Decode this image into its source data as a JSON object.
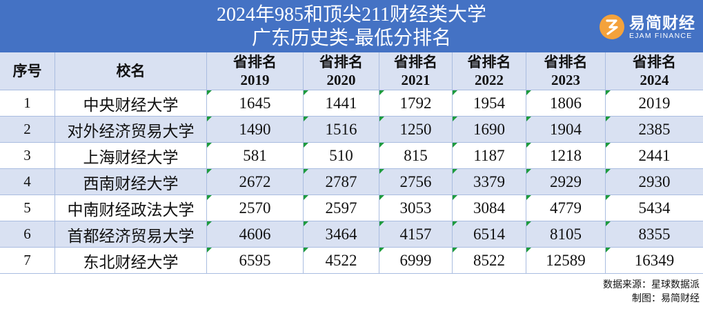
{
  "colors": {
    "title_band": "#4472C4",
    "title_text": "#FFFFFF",
    "header_row": "#D9E1F2",
    "alt_row": "#D9E1F2",
    "grid_line": "#A9BCE0",
    "error_marker": "#1E9B3E",
    "logo_accent": "#F4A23B"
  },
  "logo": {
    "icon": "ejam-logo-icon",
    "name": "易简财经",
    "tagline": "EJAM FINANCE"
  },
  "chart_data": {
    "type": "table",
    "title": "2024年985和顶尖211财经类大学",
    "subtitle": "广东历史类-最低分排名",
    "columns": [
      {
        "label": "序号"
      },
      {
        "label": "校名"
      },
      {
        "label": "省排名",
        "year": "2019"
      },
      {
        "label": "省排名",
        "year": "2020"
      },
      {
        "label": "省排名",
        "year": "2021"
      },
      {
        "label": "省排名",
        "year": "2022"
      },
      {
        "label": "省排名",
        "year": "2023"
      },
      {
        "label": "省排名",
        "year": "2024"
      }
    ],
    "rows": [
      [
        1,
        "中央财经大学",
        1645,
        1441,
        1792,
        1954,
        1806,
        2019
      ],
      [
        2,
        "对外经济贸易大学",
        1490,
        1516,
        1250,
        1690,
        1904,
        2385
      ],
      [
        3,
        "上海财经大学",
        581,
        510,
        815,
        1187,
        1218,
        2441
      ],
      [
        4,
        "西南财经大学",
        2672,
        2787,
        2756,
        3379,
        2929,
        2930
      ],
      [
        5,
        "中南财经政法大学",
        2570,
        2597,
        3053,
        3084,
        4779,
        5434
      ],
      [
        6,
        "首都经济贸易大学",
        4606,
        3464,
        4157,
        6514,
        8105,
        8355
      ],
      [
        7,
        "东北财经大学",
        6595,
        4522,
        6999,
        8522,
        12589,
        16349
      ]
    ]
  },
  "footer": {
    "source": "数据来源：星球数据派",
    "credit": "制图：易简财经"
  }
}
